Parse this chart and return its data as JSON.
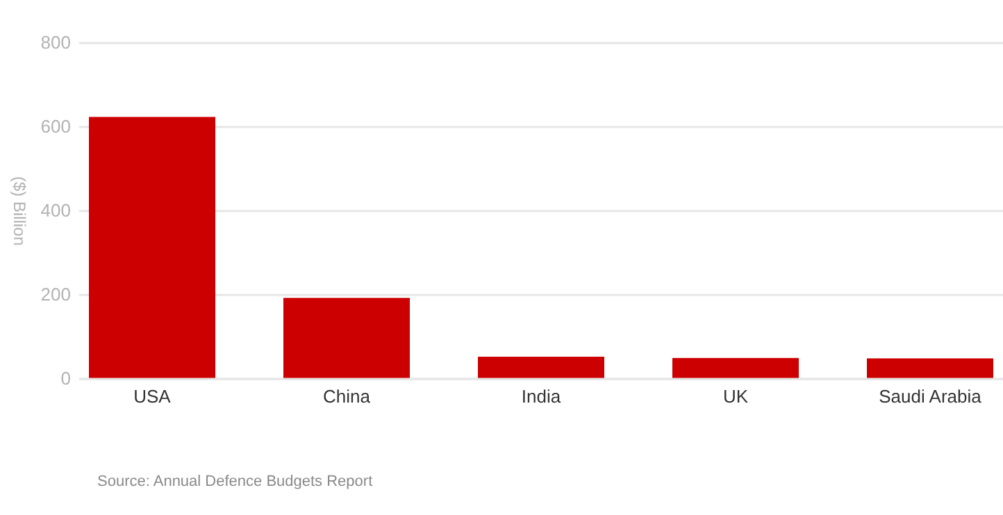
{
  "chart_data": {
    "type": "bar",
    "ylabel": "($) Billion",
    "categories": [
      "USA",
      "China",
      "India",
      "UK",
      "Saudi Arabia"
    ],
    "values": [
      624,
      193,
      53,
      50,
      49
    ],
    "color": "#cc0000",
    "ylim": [
      0,
      800
    ],
    "yticks": [
      0,
      200,
      400,
      600,
      800
    ],
    "grid": "y",
    "annotations": [
      "Source: Annual Defence Budgets Report"
    ]
  }
}
